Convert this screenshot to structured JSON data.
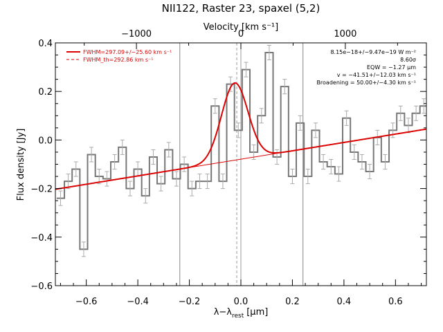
{
  "chart_data": {
    "type": "line",
    "title": "NII122, Raster 23, spaxel (5,2)",
    "xlabel": "λ−λ",
    "xlabel_sub": "rest",
    "xlabel_unit": "[μm]",
    "ylabel": "Flux density [Jy]",
    "top_axis_label": "Velocity [km s⁻¹]",
    "xlim": [
      -0.72,
      0.72
    ],
    "ylim": [
      -0.6,
      0.4
    ],
    "x_ticks": [
      -0.6,
      -0.4,
      -0.2,
      0.0,
      0.2,
      0.4,
      0.6
    ],
    "x_tick_labels": [
      "−0.6",
      "−0.4",
      "−0.2",
      "0.0",
      "0.2",
      "0.4",
      "0.6"
    ],
    "y_ticks": [
      -0.6,
      -0.4,
      -0.2,
      0.0,
      0.2,
      0.4
    ],
    "y_tick_labels": [
      "−0.6",
      "−0.4",
      "−0.2",
      "0.0",
      "0.2",
      "0.4"
    ],
    "top_ticks": [
      -0.4054,
      0.0,
      0.4054
    ],
    "top_tick_labels": [
      "−1000",
      "0",
      "1000"
    ],
    "grid": false,
    "vertical_markers": [
      -0.237,
      -0.016,
      0.0,
      0.241
    ],
    "legend": {
      "position": "top-left",
      "entries": [
        {
          "label": "FWHM=297.09+/−25.60 km s⁻¹",
          "style": "solid",
          "color": "#dd0000"
        },
        {
          "label": "FWHM_th=292.86 km s⁻¹",
          "style": "dashed",
          "color": "#dd0000"
        }
      ]
    },
    "annotations": [
      "8.15e−18+/−9.47e−19 W m⁻²",
      "8.60σ",
      "EQW = −1.27 μm",
      "v = −41.51+/−12.03 km s⁻¹",
      "Broadening = 50.00+/−4.30 km s⁻¹"
    ],
    "colors": {
      "data": "#777777",
      "errorbar": "#aaaaaa",
      "fit": "#dd0000",
      "marker": "#888888"
    },
    "series": [
      {
        "name": "spectrum",
        "style": "step",
        "x": [
          -0.7,
          -0.67,
          -0.64,
          -0.61,
          -0.58,
          -0.55,
          -0.52,
          -0.49,
          -0.46,
          -0.43,
          -0.4,
          -0.37,
          -0.34,
          -0.31,
          -0.28,
          -0.25,
          -0.22,
          -0.19,
          -0.16,
          -0.13,
          -0.1,
          -0.07,
          -0.04,
          -0.01,
          0.02,
          0.05,
          0.08,
          0.11,
          0.14,
          0.17,
          0.2,
          0.23,
          0.26,
          0.29,
          0.32,
          0.35,
          0.38,
          0.41,
          0.44,
          0.47,
          0.5,
          0.53,
          0.56,
          0.59,
          0.62,
          0.65,
          0.68,
          0.71
        ],
        "y": [
          -0.24,
          -0.17,
          -0.12,
          -0.45,
          -0.06,
          -0.15,
          -0.16,
          -0.09,
          -0.03,
          -0.2,
          -0.12,
          -0.23,
          -0.07,
          -0.18,
          -0.04,
          -0.16,
          -0.1,
          -0.2,
          -0.17,
          -0.17,
          0.14,
          -0.17,
          0.23,
          0.04,
          0.29,
          -0.05,
          0.1,
          0.36,
          -0.07,
          0.22,
          -0.15,
          0.07,
          -0.15,
          0.04,
          -0.09,
          -0.11,
          -0.14,
          0.09,
          -0.05,
          -0.09,
          -0.13,
          0.01,
          -0.09,
          0.04,
          0.11,
          0.06,
          0.11,
          0.14
        ],
        "error": 0.03
      },
      {
        "name": "FWHM=297.09+/−25.60 km s⁻¹",
        "style": "line",
        "model": "gaussian_plus_linear",
        "baseline": {
          "slope": 0.1722,
          "intercept": -0.079
        },
        "gaussian": {
          "center": -0.0241,
          "amplitude": 0.318,
          "fwhm": 0.1208
        }
      },
      {
        "name": "continuum",
        "style": "thin-line",
        "model": "linear",
        "baseline": {
          "slope": 0.1722,
          "intercept": -0.079
        }
      }
    ]
  }
}
